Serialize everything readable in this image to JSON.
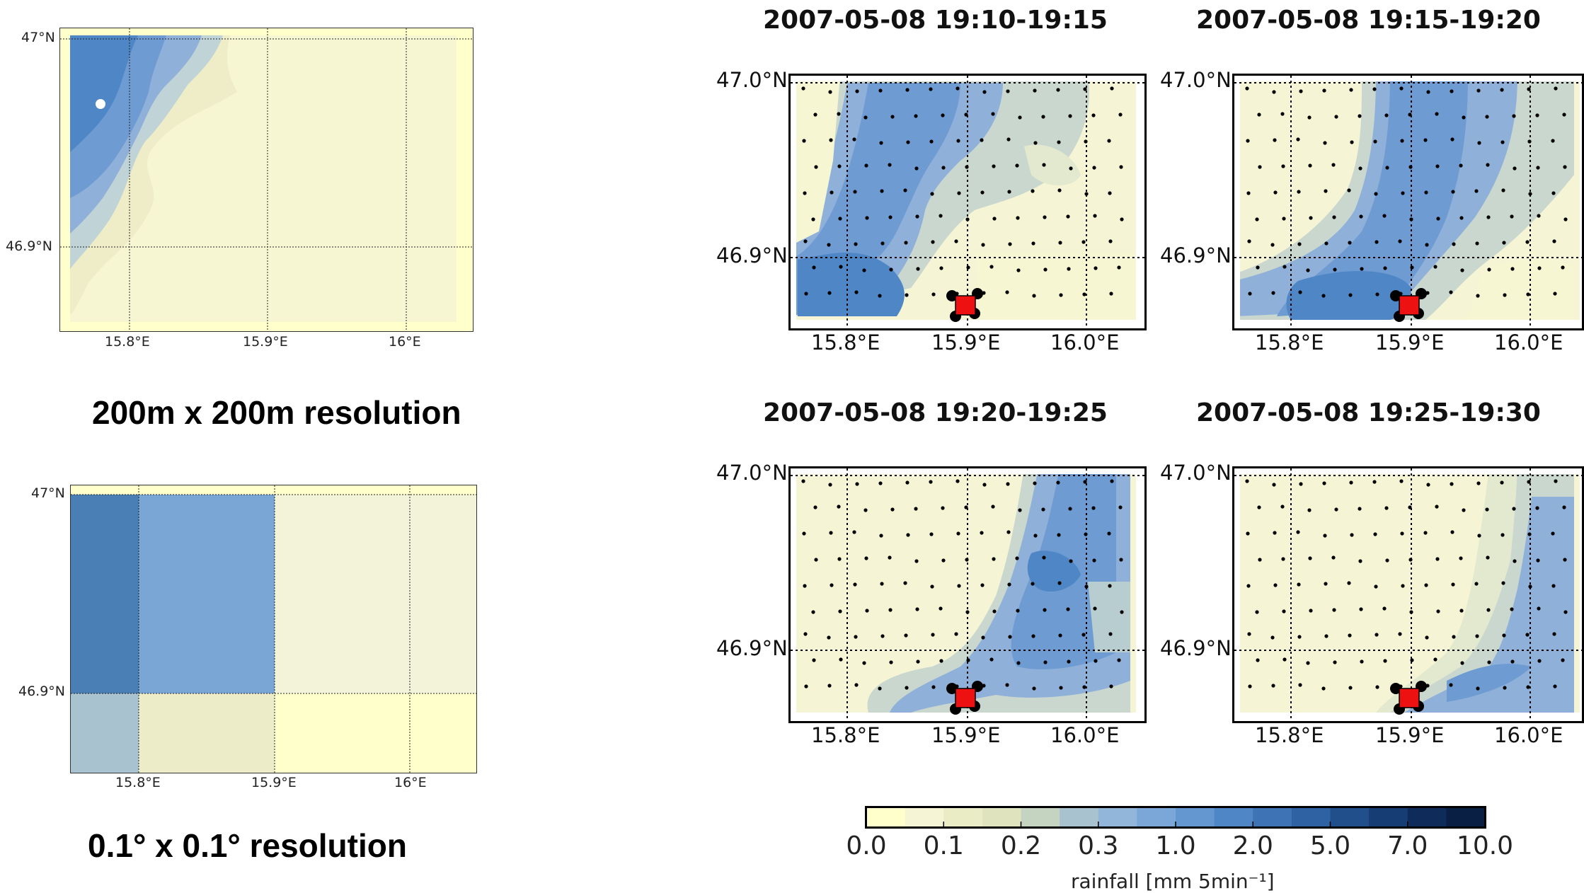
{
  "left": {
    "top_map": {
      "lat_labels": [
        "47°N",
        "46.9°N"
      ],
      "lon_labels": [
        "15.8°E",
        "15.9°E",
        "16°E"
      ]
    },
    "caption_top": "200m x 200m resolution",
    "bottom_map": {
      "lat_labels": [
        "47°N",
        "46.9°N"
      ],
      "lon_labels": [
        "15.8°E",
        "15.9°E",
        "16°E"
      ]
    },
    "caption_bottom": "0.1° x 0.1° resolution"
  },
  "panels": [
    {
      "title": "2007-05-08 19:10-19:15"
    },
    {
      "title": "2007-05-08 19:15-19:20"
    },
    {
      "title": "2007-05-08 19:20-19:25"
    },
    {
      "title": "2007-05-08 19:25-19:30"
    }
  ],
  "panel_axes": {
    "lat_labels": [
      "47.0°N",
      "46.9°N"
    ],
    "lon_labels": [
      "15.8°E",
      "15.9°E",
      "16.0°E"
    ]
  },
  "colorbar": {
    "ticks": [
      "0.0",
      "0.1",
      "0.2",
      "0.3",
      "1.0",
      "2.0",
      "5.0",
      "7.0",
      "10.0"
    ],
    "label": "rainfall [mm 5min⁻¹]",
    "colors": [
      "#ffffcc",
      "#f5f5d5",
      "#eaecc6",
      "#dfe4bf",
      "#c4d4c0",
      "#a9c2cf",
      "#92b6d9",
      "#7ba6d8",
      "#6496d0",
      "#4f86c6",
      "#3e74b5",
      "#2f62a2",
      "#214f8c",
      "#173d75",
      "#0f2b59",
      "#0a1f44"
    ]
  },
  "colors": {
    "marker_square": "#ee1111",
    "marker_dots": "#000000"
  }
}
